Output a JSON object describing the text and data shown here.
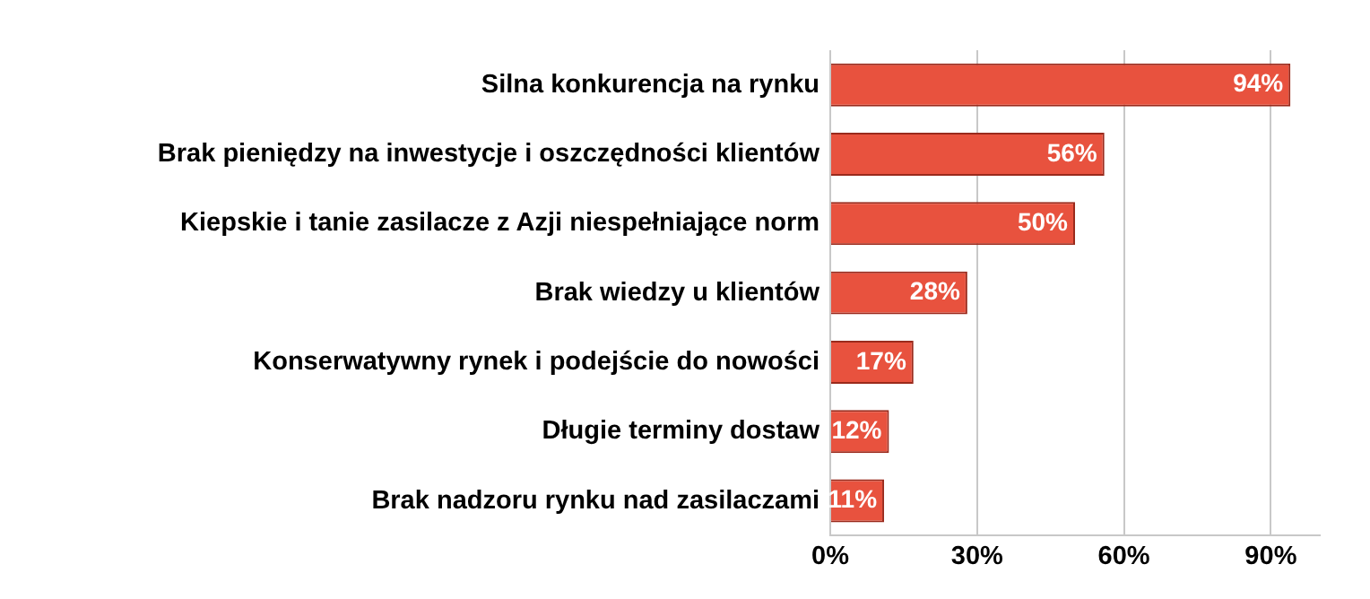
{
  "chart_data": {
    "type": "bar",
    "orientation": "horizontal",
    "categories": [
      "Silna konkurencja na rynku",
      "Brak pieniędzy na inwestycje i oszczędności klientów",
      "Kiepskie i tanie zasilacze z Azji niespełniające norm",
      "Brak wiedzy u klientów",
      "Konserwatywny rynek i podejście do nowości",
      "Długie terminy dostaw",
      "Brak nadzoru rynku nad zasilaczami"
    ],
    "values": [
      94,
      56,
      50,
      28,
      17,
      12,
      11
    ],
    "value_labels": [
      "94%",
      "56%",
      "50%",
      "28%",
      "17%",
      "12%",
      "11%"
    ],
    "color": "#e8523e",
    "xlim": [
      0,
      100
    ],
    "xticks": [
      {
        "value": 0,
        "label": "0%"
      },
      {
        "value": 30,
        "label": "30%"
      },
      {
        "value": 60,
        "label": "60%"
      },
      {
        "value": 90,
        "label": "90%"
      }
    ],
    "grid": "x",
    "legend": false
  }
}
